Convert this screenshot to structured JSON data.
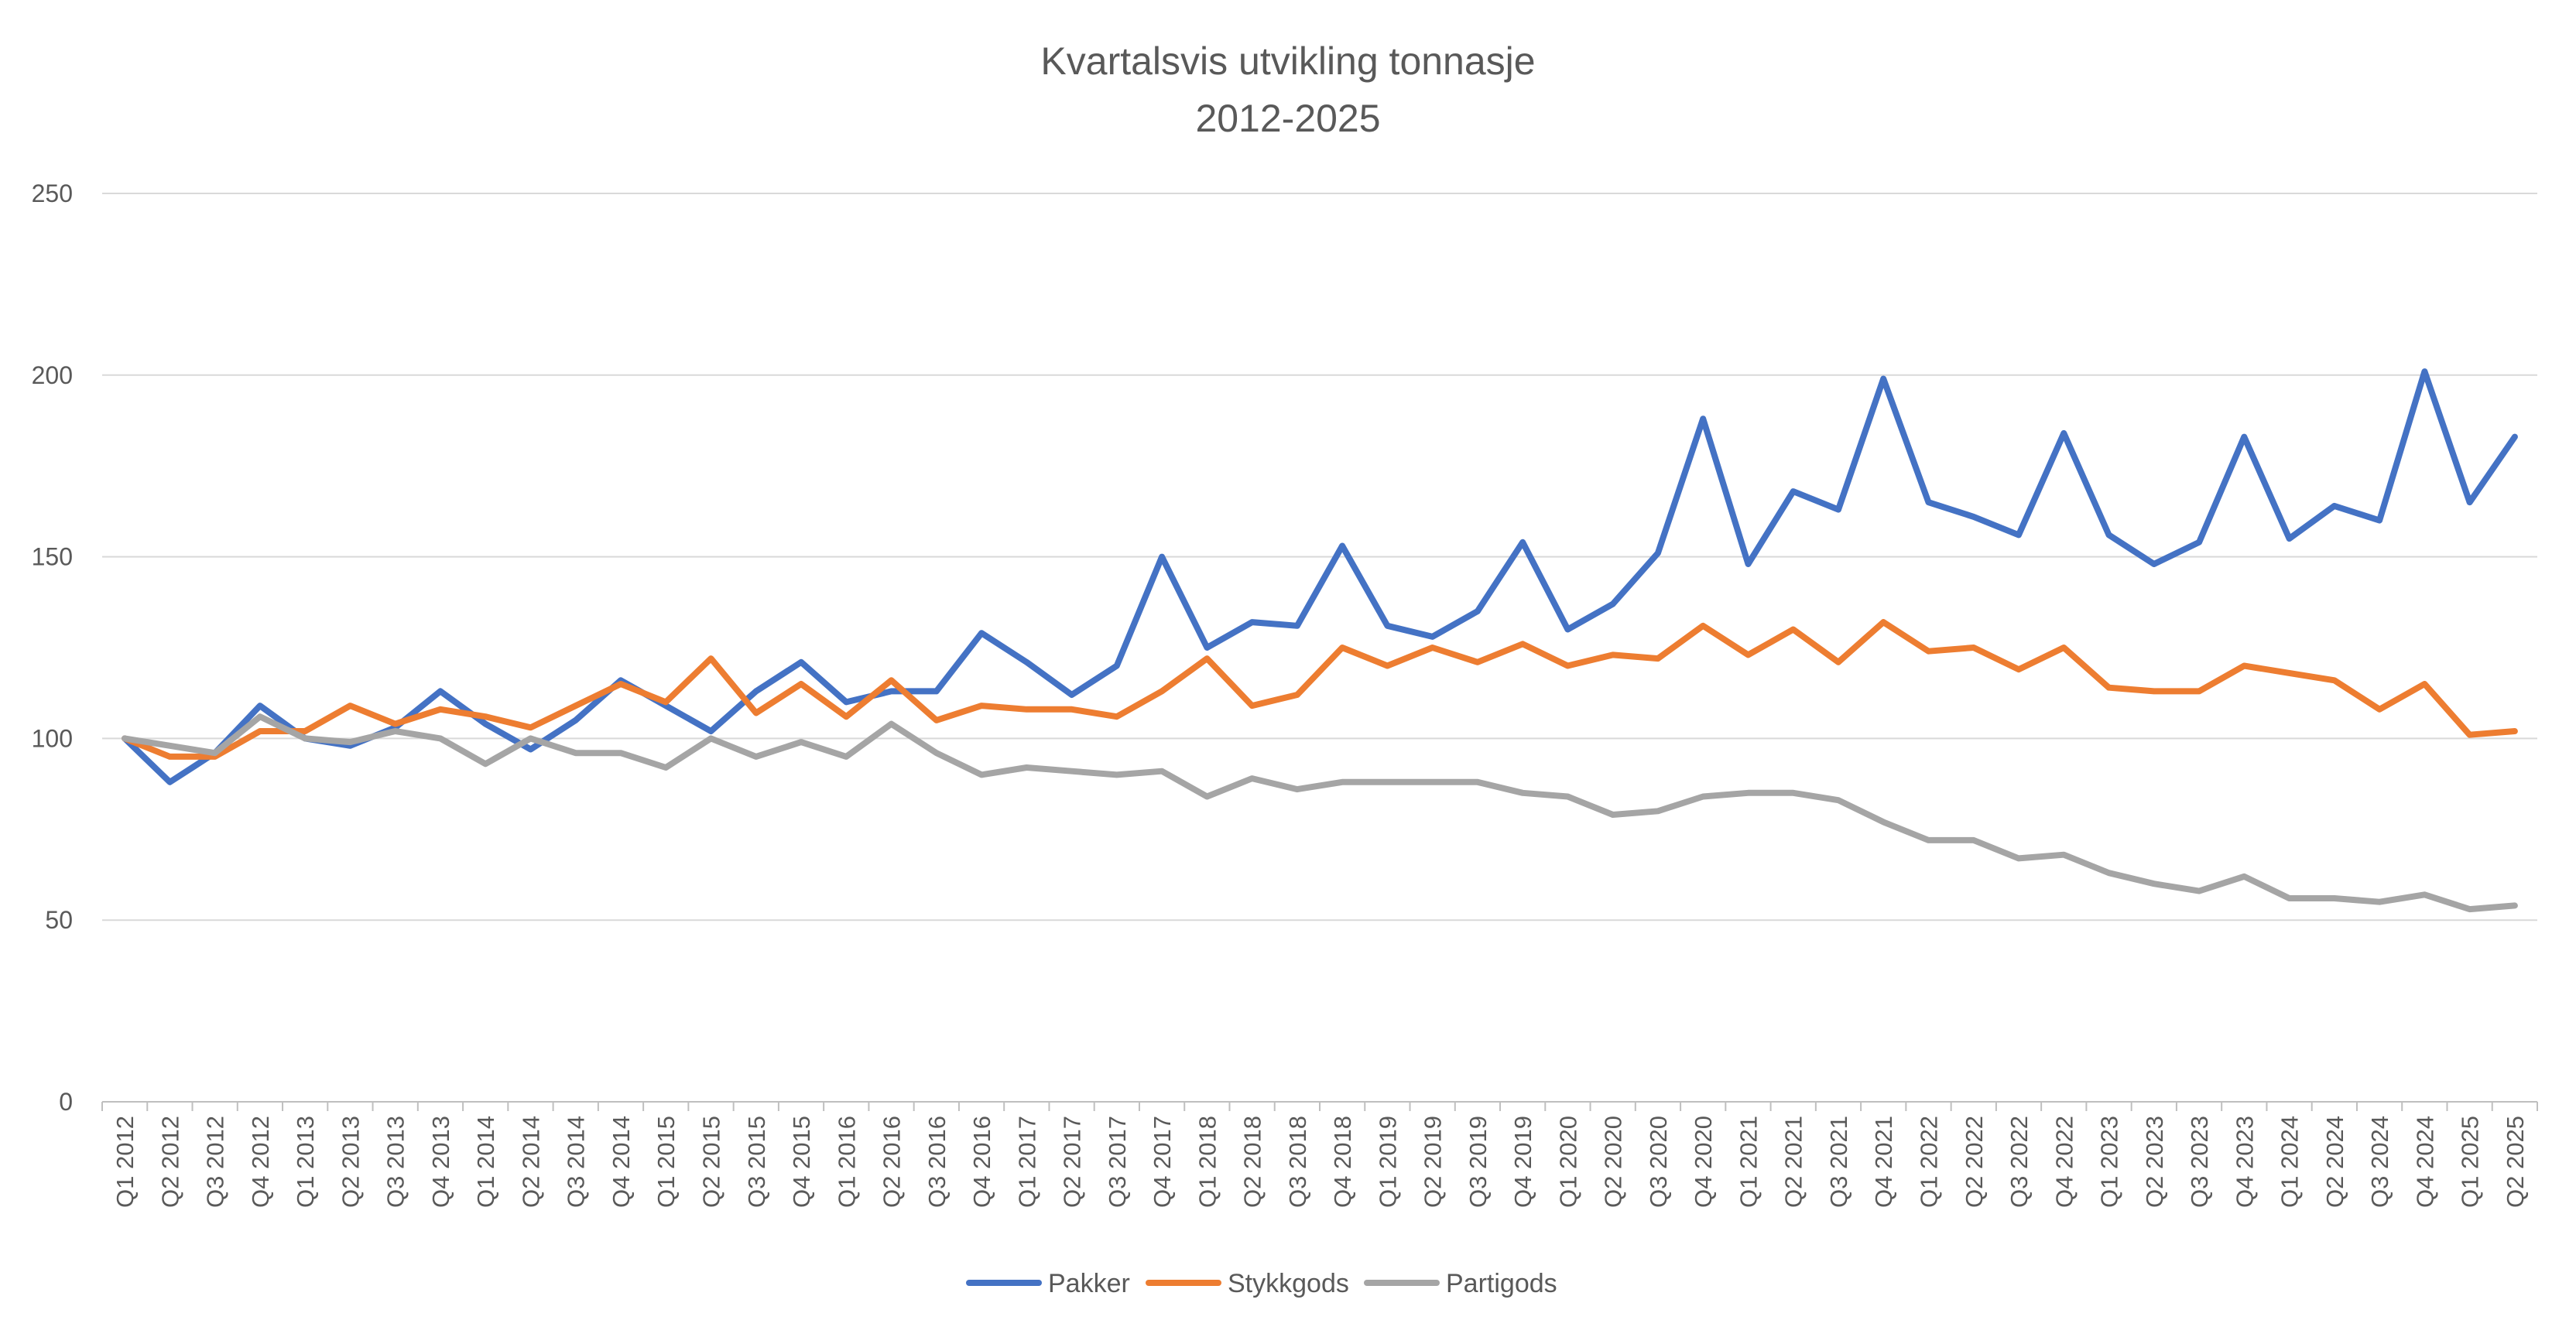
{
  "chart_data": {
    "type": "line",
    "title": "Kvartalsvis utvikling tonnasje",
    "subtitle": "2012-2025",
    "xlabel": "",
    "ylabel": "",
    "ylim": [
      0,
      250
    ],
    "yticks": [
      0,
      50,
      100,
      150,
      200,
      250
    ],
    "grid": true,
    "legend_position": "bottom",
    "categories": [
      "Q1 2012",
      "Q2 2012",
      "Q3 2012",
      "Q4 2012",
      "Q1 2013",
      "Q2 2013",
      "Q3 2013",
      "Q4 2013",
      "Q1 2014",
      "Q2 2014",
      "Q3 2014",
      "Q4 2014",
      "Q1 2015",
      "Q2 2015",
      "Q3 2015",
      "Q4 2015",
      "Q1 2016",
      "Q2 2016",
      "Q3 2016",
      "Q4 2016",
      "Q1 2017",
      "Q2 2017",
      "Q3 2017",
      "Q4 2017",
      "Q1 2018",
      "Q2 2018",
      "Q3 2018",
      "Q4 2018",
      "Q1 2019",
      "Q2 2019",
      "Q3 2019",
      "Q4 2019",
      "Q1 2020",
      "Q2 2020",
      "Q3 2020",
      "Q4 2020",
      "Q1 2021",
      "Q2 2021",
      "Q3 2021",
      "Q4 2021",
      "Q1 2022",
      "Q2 2022",
      "Q3 2022",
      "Q4 2022",
      "Q1 2023",
      "Q2 2023",
      "Q3 2023",
      "Q4 2023",
      "Q1 2024",
      "Q2 2024",
      "Q3 2024",
      "Q4 2024",
      "Q1 2025",
      "Q2 2025"
    ],
    "series": [
      {
        "name": "Pakker",
        "color": "#4472c4",
        "values": [
          100,
          88,
          96,
          109,
          100,
          98,
          103,
          113,
          104,
          97,
          105,
          116,
          109,
          102,
          113,
          121,
          110,
          113,
          113,
          129,
          121,
          112,
          120,
          150,
          125,
          132,
          131,
          153,
          131,
          128,
          135,
          154,
          130,
          137,
          151,
          188,
          148,
          168,
          163,
          199,
          165,
          161,
          156,
          184,
          156,
          148,
          154,
          183,
          155,
          164,
          160,
          201,
          165,
          183
        ]
      },
      {
        "name": "Stykkgods",
        "color": "#ed7d31",
        "values": [
          100,
          95,
          95,
          102,
          102,
          109,
          104,
          108,
          106,
          103,
          109,
          115,
          110,
          122,
          107,
          115,
          106,
          116,
          105,
          109,
          108,
          108,
          106,
          113,
          122,
          109,
          112,
          125,
          120,
          125,
          121,
          126,
          120,
          123,
          122,
          131,
          123,
          130,
          121,
          132,
          124,
          125,
          119,
          125,
          114,
          113,
          113,
          120,
          118,
          116,
          108,
          115,
          101,
          102
        ]
      },
      {
        "name": "Partigods",
        "color": "#a5a5a5",
        "values": [
          100,
          98,
          96,
          106,
          100,
          99,
          102,
          100,
          93,
          100,
          96,
          96,
          92,
          100,
          95,
          99,
          95,
          104,
          96,
          90,
          92,
          91,
          90,
          91,
          84,
          89,
          86,
          88,
          88,
          88,
          88,
          85,
          84,
          79,
          80,
          84,
          85,
          85,
          83,
          77,
          72,
          72,
          67,
          68,
          63,
          60,
          58,
          62,
          56,
          56,
          55,
          57,
          53,
          54
        ]
      }
    ]
  }
}
